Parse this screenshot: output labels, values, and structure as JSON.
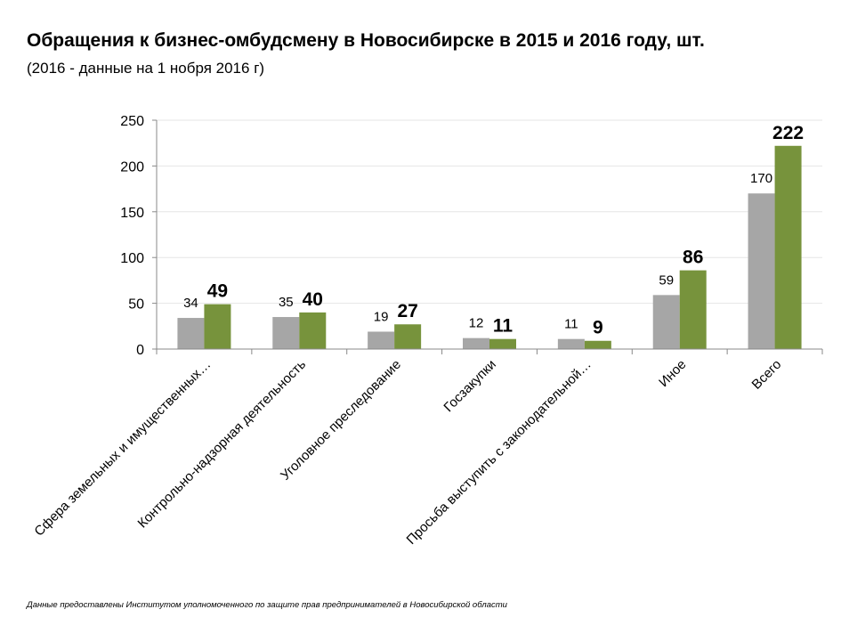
{
  "header": {
    "title": "Обращения к бизнес-омбудсмену в Новосибирске в 2015 и 2016 году, шт.",
    "subtitle": "(2016 - данные на 1 нобря 2016 г)"
  },
  "footer": {
    "source": "Данные предоставлены Институтом уполномоченного по защите прав предпринимателей в Новосибирской области"
  },
  "chart_data": {
    "type": "bar",
    "title": "",
    "xlabel": "",
    "ylabel": "",
    "ylim": [
      0,
      250
    ],
    "yticks": [
      0,
      50,
      100,
      150,
      200,
      250
    ],
    "grid": true,
    "legend": "none",
    "categories": [
      "Сфера земельных и имущественных…",
      "Контрольно-надзорная деятельность",
      "Уголовное преследование",
      "Госзакупки",
      "Просьба выступить с законодательной…",
      "Иное",
      "Всего"
    ],
    "series": [
      {
        "values": [
          34,
          35,
          19,
          12,
          11,
          59,
          170
        ],
        "color": "#a6a6a6"
      },
      {
        "values": [
          49,
          40,
          27,
          11,
          9,
          86,
          222
        ],
        "color": "#77933c"
      }
    ]
  }
}
